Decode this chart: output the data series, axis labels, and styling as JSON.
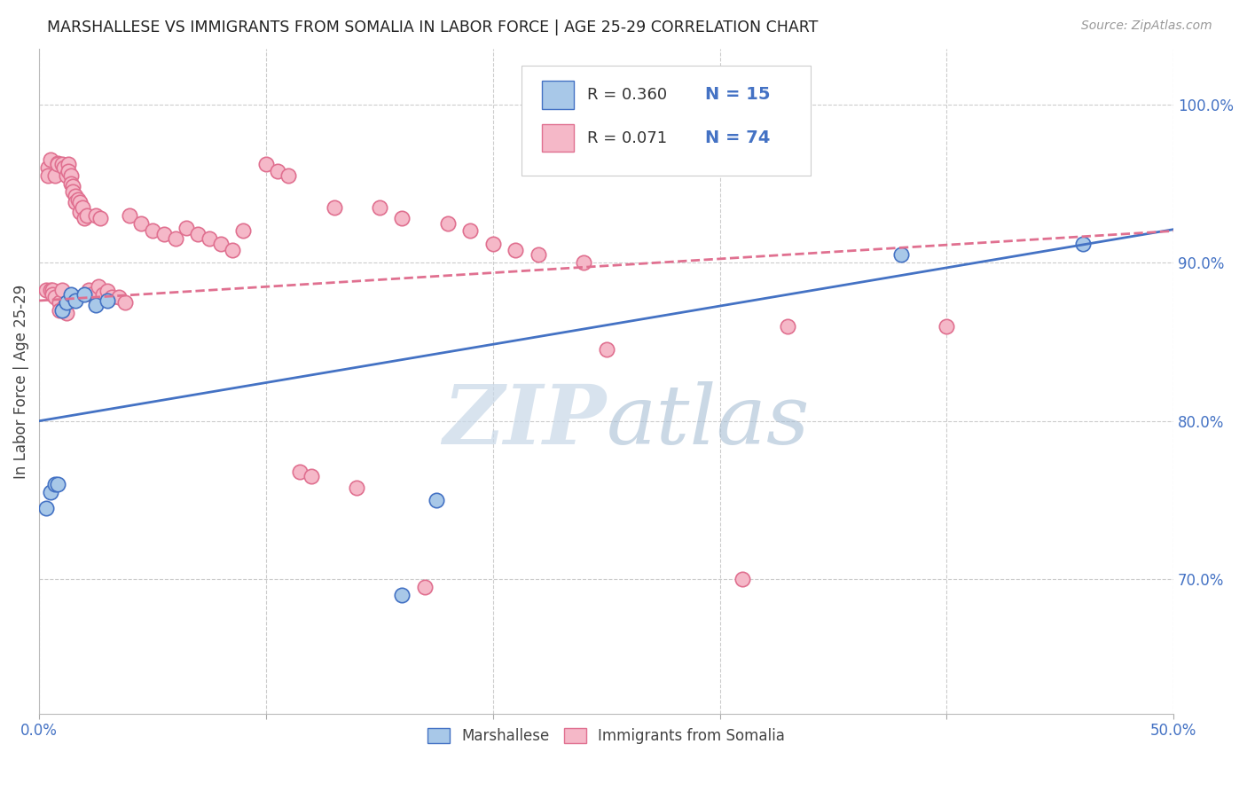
{
  "title": "MARSHALLESE VS IMMIGRANTS FROM SOMALIA IN LABOR FORCE | AGE 25-29 CORRELATION CHART",
  "source": "Source: ZipAtlas.com",
  "ylabel": "In Labor Force | Age 25-29",
  "x_min": 0.0,
  "x_max": 0.5,
  "y_min": 0.615,
  "y_max": 1.035,
  "y_ticks": [
    0.7,
    0.8,
    0.9,
    1.0
  ],
  "x_ticks": [
    0.0,
    0.1,
    0.2,
    0.3,
    0.4,
    0.5
  ],
  "x_tick_labels": [
    "0.0%",
    "",
    "",
    "",
    "",
    "50.0%"
  ],
  "y_tick_labels": [
    "70.0%",
    "80.0%",
    "90.0%",
    "100.0%"
  ],
  "blue_color": "#a8c8e8",
  "pink_color": "#f5b8c8",
  "blue_edge_color": "#4472c4",
  "pink_edge_color": "#e07090",
  "blue_line_color": "#4472c4",
  "pink_line_color": "#e07090",
  "watermark_zip": "ZIP",
  "watermark_atlas": "atlas",
  "watermark_color_zip": "#c8d8e8",
  "watermark_color_atlas": "#a0b8d0",
  "legend_R1": "R = 0.360",
  "legend_N1": "N = 15",
  "legend_R2": "R = 0.071",
  "legend_N2": "N = 74",
  "marshallese_x": [
    0.003,
    0.005,
    0.007,
    0.008,
    0.01,
    0.012,
    0.014,
    0.016,
    0.02,
    0.025,
    0.03,
    0.16,
    0.175,
    0.38,
    0.46
  ],
  "marshallese_y": [
    0.745,
    0.755,
    0.76,
    0.76,
    0.87,
    0.875,
    0.88,
    0.876,
    0.88,
    0.873,
    0.876,
    0.69,
    0.75,
    0.905,
    0.912
  ],
  "somalia_x": [
    0.003,
    0.004,
    0.004,
    0.005,
    0.005,
    0.006,
    0.006,
    0.007,
    0.007,
    0.008,
    0.008,
    0.009,
    0.009,
    0.01,
    0.01,
    0.011,
    0.011,
    0.012,
    0.012,
    0.013,
    0.013,
    0.014,
    0.014,
    0.015,
    0.015,
    0.016,
    0.016,
    0.017,
    0.018,
    0.018,
    0.019,
    0.02,
    0.021,
    0.022,
    0.023,
    0.025,
    0.026,
    0.027,
    0.028,
    0.03,
    0.032,
    0.035,
    0.038,
    0.04,
    0.045,
    0.05,
    0.055,
    0.06,
    0.065,
    0.07,
    0.075,
    0.08,
    0.085,
    0.09,
    0.1,
    0.105,
    0.11,
    0.115,
    0.12,
    0.13,
    0.14,
    0.15,
    0.16,
    0.17,
    0.18,
    0.19,
    0.2,
    0.21,
    0.22,
    0.24,
    0.25,
    0.31,
    0.33,
    0.4
  ],
  "somalia_y": [
    0.883,
    0.96,
    0.955,
    0.883,
    0.965,
    0.883,
    0.88,
    0.955,
    0.878,
    0.963,
    0.962,
    0.875,
    0.87,
    0.883,
    0.962,
    0.96,
    0.872,
    0.955,
    0.868,
    0.962,
    0.958,
    0.955,
    0.95,
    0.948,
    0.945,
    0.942,
    0.938,
    0.94,
    0.938,
    0.932,
    0.935,
    0.928,
    0.93,
    0.883,
    0.88,
    0.93,
    0.885,
    0.928,
    0.88,
    0.882,
    0.878,
    0.878,
    0.875,
    0.93,
    0.925,
    0.92,
    0.918,
    0.915,
    0.922,
    0.918,
    0.915,
    0.912,
    0.908,
    0.92,
    0.962,
    0.958,
    0.955,
    0.768,
    0.765,
    0.935,
    0.758,
    0.935,
    0.928,
    0.695,
    0.925,
    0.92,
    0.912,
    0.908,
    0.905,
    0.9,
    0.845,
    0.7,
    0.86,
    0.86
  ]
}
